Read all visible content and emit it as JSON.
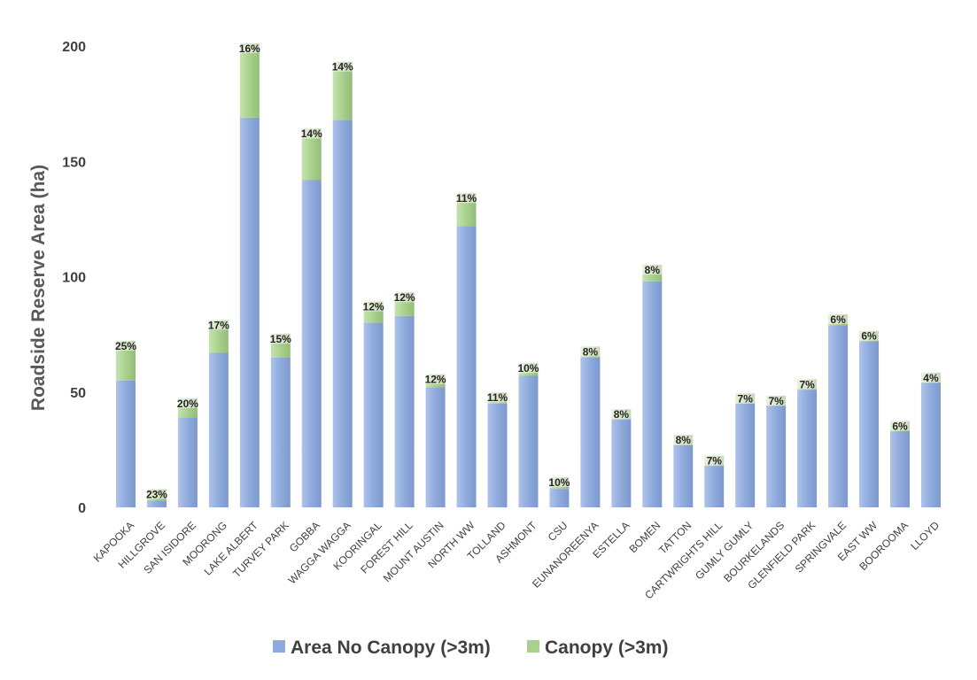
{
  "chart_data": {
    "type": "bar",
    "stacked": true,
    "ylabel": "Roadside Reserve Area (ha)",
    "xlabel": "",
    "ylim": [
      0,
      200
    ],
    "yticks": [
      0,
      50,
      100,
      150,
      200
    ],
    "grid": false,
    "legend_position": "bottom",
    "categories": [
      "KAPOOKA",
      "HILLGROVE",
      "SAN ISIDORE",
      "MOORONG",
      "LAKE ALBERT",
      "TURVEY PARK",
      "GOBBA",
      "WAGGA WAGGA",
      "KOORINGAL",
      "FOREST HILL",
      "MOUNT AUSTIN",
      "NORTH WW",
      "TOLLAND",
      "ASHMONT",
      "CSU",
      "EUNANOREENYA",
      "ESTELLA",
      "BOMEN",
      "TATTON",
      "CARTWRIGHTS HILL",
      "GUMLY GUMLY",
      "BOURKELANDS",
      "GLENFIELD PARK",
      "SPRINGVALE",
      "EAST WW",
      "BOOROOMA",
      "LLOYD"
    ],
    "series": [
      {
        "name": "Area No Canopy (>3m)",
        "color": "#8faadc",
        "values": [
          55,
          3,
          39,
          67,
          169,
          65,
          142,
          168,
          80,
          83,
          52,
          122,
          45,
          57,
          8,
          65,
          38,
          98,
          27,
          18,
          45,
          44,
          51,
          79,
          72,
          33,
          54
        ]
      },
      {
        "name": "Canopy (>3m)",
        "color": "#a9d18e",
        "values": [
          13,
          0.7,
          4,
          10,
          28,
          6,
          18,
          21,
          5,
          6,
          1.5,
          10,
          0.6,
          1.3,
          0.8,
          0.5,
          0.3,
          3,
          0.2,
          0.2,
          0.2,
          0.2,
          0.3,
          0.5,
          0.3,
          0.2,
          0.2
        ]
      }
    ],
    "labels": [
      "25%",
      "23%",
      "20%",
      "17%",
      "16%",
      "15%",
      "14%",
      "14%",
      "12%",
      "12%",
      "12%",
      "11%",
      "11%",
      "10%",
      "10%",
      "8%",
      "8%",
      "8%",
      "8%",
      "7%",
      "7%",
      "7%",
      "7%",
      "6%",
      "6%",
      "6%",
      "4%"
    ]
  }
}
